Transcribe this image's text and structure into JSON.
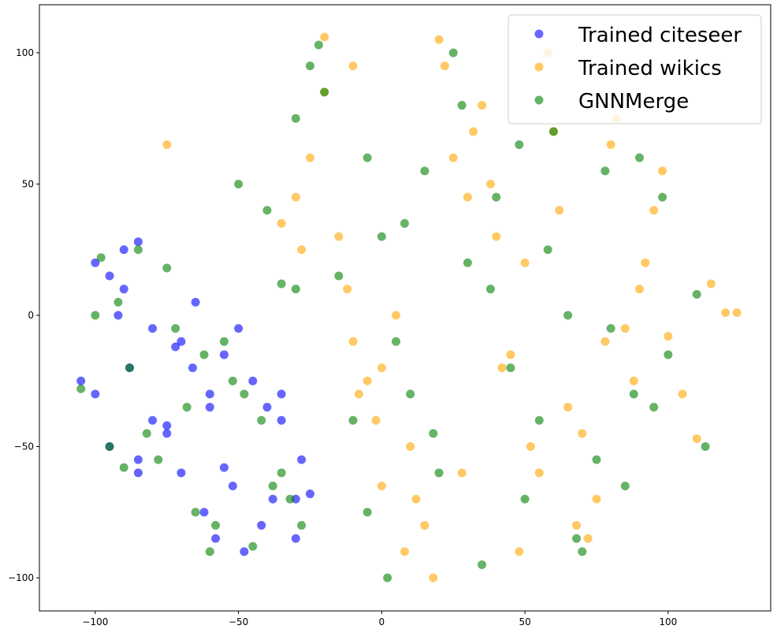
{
  "chart_data": {
    "type": "scatter",
    "legend": "upper right",
    "xlim": [
      -119.5,
      135.8
    ],
    "ylim": [
      -112.6,
      118.3
    ],
    "xticks": [
      {
        "value": -100,
        "label": "−100"
      },
      {
        "value": -50,
        "label": "−50"
      },
      0,
      50,
      100
    ],
    "yticks": [
      {
        "value": -100,
        "label": "−100"
      },
      {
        "value": -50,
        "label": "−50"
      },
      0,
      50,
      100
    ],
    "series": [
      {
        "name": "Trained citeseer",
        "color": "#0000ff",
        "x": [
          -105,
          -100,
          -95,
          -90,
          -85,
          -92,
          -88,
          -80,
          -75,
          -70,
          -65,
          -60,
          -55,
          -50,
          -45,
          -40,
          -35,
          -30,
          -95,
          -85,
          -75,
          -70,
          -62,
          -58,
          -52,
          -48,
          -42,
          -38,
          -30,
          -25,
          -100,
          -90,
          -80,
          -66,
          -60,
          -35,
          -28,
          -55,
          -72,
          -85
        ],
        "y": [
          -25,
          20,
          15,
          25,
          28,
          0,
          -20,
          -40,
          -45,
          -10,
          5,
          -30,
          -15,
          -5,
          -25,
          -35,
          -30,
          -70,
          -50,
          -55,
          -42,
          -60,
          -75,
          -85,
          -65,
          -90,
          -80,
          -70,
          -85,
          -68,
          -30,
          10,
          -5,
          -20,
          -35,
          -40,
          -55,
          -58,
          -12,
          -60
        ]
      },
      {
        "name": "Trained wikics",
        "color": "#ffa500",
        "x": [
          -30,
          -25,
          -20,
          -15,
          -10,
          -5,
          0,
          5,
          10,
          15,
          20,
          25,
          30,
          35,
          40,
          45,
          50,
          55,
          60,
          65,
          70,
          75,
          80,
          85,
          90,
          95,
          100,
          105,
          110,
          115,
          120,
          124,
          -35,
          -28,
          -12,
          -8,
          -2,
          8,
          18,
          28,
          38,
          48,
          58,
          68,
          78,
          88,
          98,
          -20,
          -10,
          0,
          12,
          22,
          32,
          42,
          52,
          62,
          72,
          82,
          92,
          -75
        ],
        "y": [
          45,
          60,
          85,
          30,
          -10,
          -25,
          -20,
          0,
          -50,
          -80,
          105,
          60,
          45,
          80,
          30,
          -15,
          20,
          -60,
          70,
          -35,
          -45,
          -70,
          65,
          -5,
          10,
          40,
          -8,
          -30,
          -47,
          12,
          1,
          1,
          35,
          25,
          10,
          -30,
          -40,
          -90,
          -100,
          -60,
          50,
          -90,
          100,
          -80,
          -10,
          -25,
          55,
          106,
          95,
          -65,
          -70,
          95,
          70,
          -20,
          -50,
          40,
          -85,
          75,
          20,
          65
        ]
      },
      {
        "name": "GNNMerge",
        "color": "#008000",
        "x": [
          -105,
          -98,
          -92,
          -88,
          -82,
          -78,
          -72,
          -68,
          -62,
          -58,
          -52,
          -48,
          -42,
          -38,
          -32,
          -28,
          -22,
          -95,
          -85,
          -65,
          -55,
          -45,
          -35,
          -30,
          -25,
          -100,
          -90,
          -75,
          -60,
          -50,
          -40,
          -30,
          -20,
          -10,
          -5,
          0,
          5,
          10,
          15,
          20,
          25,
          30,
          35,
          40,
          45,
          50,
          55,
          60,
          65,
          70,
          75,
          80,
          85,
          90,
          95,
          100,
          -15,
          -5,
          8,
          18,
          28,
          38,
          48,
          58,
          68,
          78,
          88,
          98,
          110,
          113,
          -35,
          2
        ],
        "y": [
          -28,
          22,
          5,
          -20,
          -45,
          -55,
          -5,
          -35,
          -15,
          -80,
          -25,
          -30,
          -40,
          -65,
          -70,
          -80,
          103,
          -50,
          25,
          -75,
          -10,
          -88,
          -60,
          10,
          95,
          0,
          -58,
          18,
          -90,
          50,
          40,
          75,
          85,
          -40,
          60,
          30,
          -10,
          -30,
          55,
          -60,
          100,
          20,
          -95,
          45,
          -20,
          -70,
          -40,
          70,
          0,
          -90,
          -55,
          -5,
          -65,
          60,
          -35,
          -15,
          15,
          -75,
          35,
          -45,
          80,
          10,
          65,
          25,
          -85,
          55,
          -30,
          45,
          8,
          -50,
          12,
          -100
        ]
      }
    ]
  }
}
